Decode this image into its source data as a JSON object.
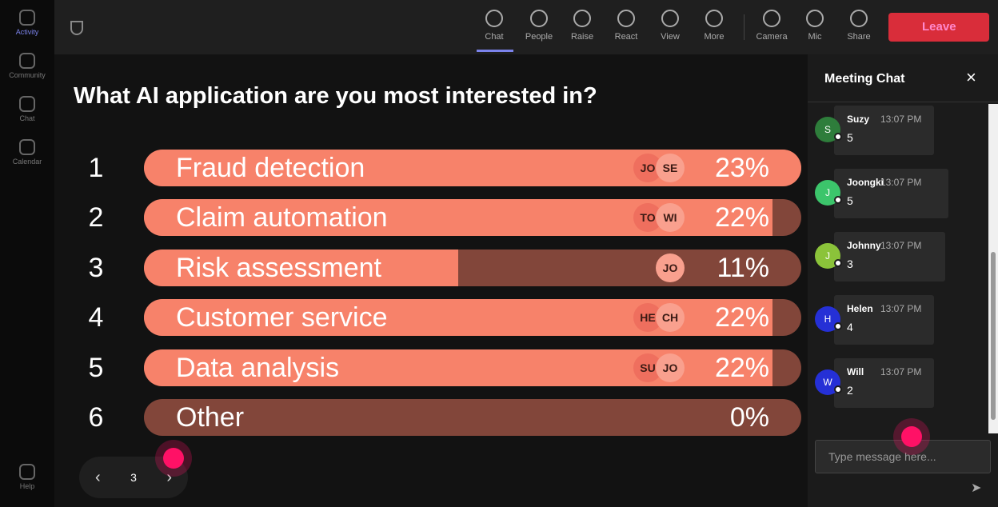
{
  "sidebar": {
    "items": [
      "Activity",
      "Community",
      "Chat",
      "Calendar"
    ],
    "help": "Help"
  },
  "toolbar": {
    "items": [
      "Chat",
      "People",
      "Raise",
      "React",
      "View",
      "More",
      "Camera",
      "Mic",
      "Share"
    ],
    "leave": "Leave"
  },
  "poll": {
    "question": "What AI application are you most interested in?",
    "options": [
      {
        "index": "1",
        "label": "Fraud detection",
        "value": 23,
        "value_label": "23%",
        "voters": [
          "JO",
          "SE"
        ]
      },
      {
        "index": "2",
        "label": "Claim automation",
        "value": 22,
        "value_label": "22%",
        "voters": [
          "TO",
          "WI"
        ]
      },
      {
        "index": "3",
        "label": "Risk assessment",
        "value": 11,
        "value_label": "11%",
        "voters": [
          "JO"
        ]
      },
      {
        "index": "4",
        "label": "Customer service",
        "value": 22,
        "value_label": "22%",
        "voters": [
          "HE",
          "CH"
        ]
      },
      {
        "index": "5",
        "label": "Data analysis",
        "value": 22,
        "value_label": "22%",
        "voters": [
          "SU",
          "JO"
        ]
      },
      {
        "index": "6",
        "label": "Other",
        "value": 0,
        "value_label": "0%",
        "voters": []
      }
    ],
    "page": "3"
  },
  "chat": {
    "title": "Meeting Chat",
    "messages": [
      {
        "initial": "S",
        "name": "Suzy",
        "time": "13:07 PM",
        "text": "5",
        "color": "#2e7d3b"
      },
      {
        "initial": "J",
        "name": "Joongki",
        "time": "13:07 PM",
        "text": "5",
        "color": "#3cc56b"
      },
      {
        "initial": "J",
        "name": "Johnny",
        "time": "13:07 PM",
        "text": "3",
        "color": "#8bc33a"
      },
      {
        "initial": "H",
        "name": "Helen",
        "time": "13:07 PM",
        "text": "4",
        "color": "#2530d6"
      },
      {
        "initial": "W",
        "name": "Will",
        "time": "13:07 PM",
        "text": "2",
        "color": "#2530d6"
      }
    ],
    "placeholder": "Type message here..."
  }
}
